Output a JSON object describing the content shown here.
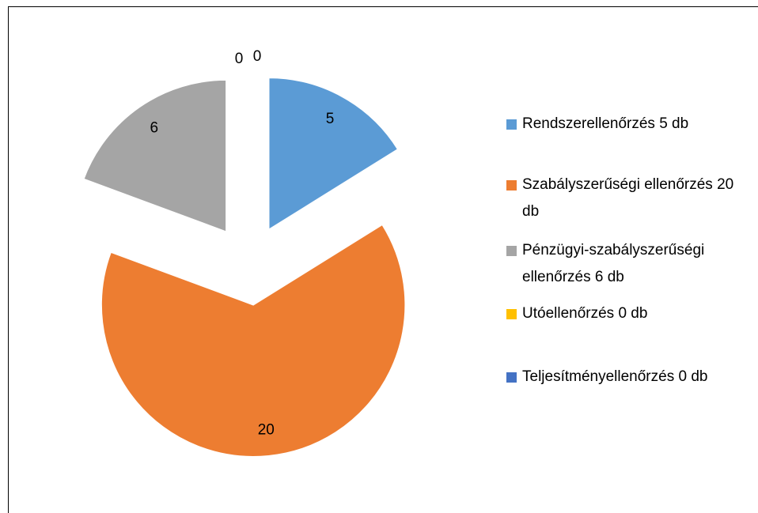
{
  "chart_data": {
    "type": "pie",
    "categories": [
      "Rendszerellenőrzés 5 db",
      "Szabályszerűségi ellenőrzés 20 db",
      "Pénzügyi-szabályszerűségi ellenőrzés 6 db",
      "Utóellenőrzés 0 db",
      "Teljesítményellenőrzés 0 db"
    ],
    "values": [
      5,
      20,
      6,
      0,
      0
    ],
    "colors": [
      "#5b9bd5",
      "#ed7d31",
      "#a5a5a5",
      "#ffc000",
      "#4472c4"
    ],
    "legend": "right"
  }
}
